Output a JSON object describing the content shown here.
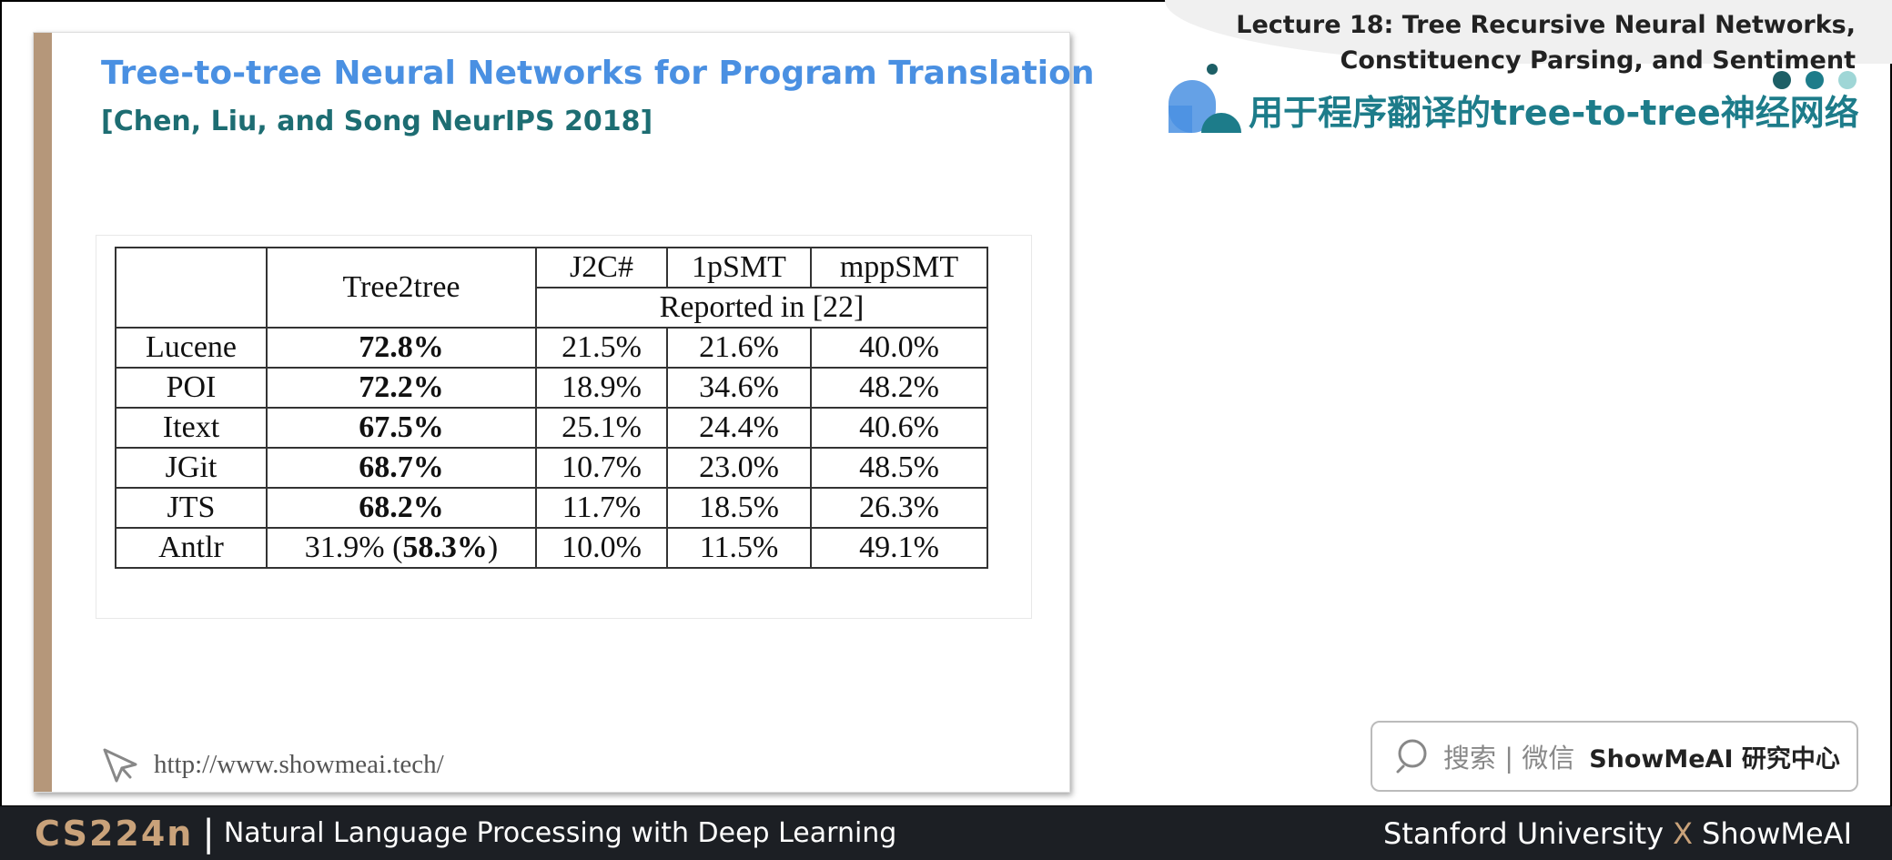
{
  "header": {
    "lecture_line1": "Lecture 18: Tree Recursive Neural Networks,",
    "lecture_line2": "Constituency Parsing, and Sentiment",
    "cn_title": "用于程序翻译的tree-to-tree神经网络"
  },
  "slide": {
    "title": "Tree-to-tree Neural Networks for Program Translation",
    "subtitle": "[Chen, Liu, and Song NeurIPS 2018]",
    "url": "http://www.showmeai.tech/"
  },
  "table": {
    "header_tree2tree": "Tree2tree",
    "header_cols": [
      "J2C#",
      "1pSMT",
      "mppSMT"
    ],
    "reported": "Reported in [22]",
    "rows": [
      {
        "name": "Lucene",
        "tree2tree": "72.8%",
        "j2c": "21.5%",
        "psmt": "21.6%",
        "mpp": "40.0%"
      },
      {
        "name": "POI",
        "tree2tree": "72.2%",
        "j2c": "18.9%",
        "psmt": "34.6%",
        "mpp": "48.2%"
      },
      {
        "name": "Itext",
        "tree2tree": "67.5%",
        "j2c": "25.1%",
        "psmt": "24.4%",
        "mpp": "40.6%"
      },
      {
        "name": "JGit",
        "tree2tree": "68.7%",
        "j2c": "10.7%",
        "psmt": "23.0%",
        "mpp": "48.5%"
      },
      {
        "name": "JTS",
        "tree2tree": "68.2%",
        "j2c": "11.7%",
        "psmt": "18.5%",
        "mpp": "26.3%"
      }
    ],
    "antlr": {
      "name": "Antlr",
      "tree2tree_plain": "31.9% (",
      "tree2tree_bold": "58.3%",
      "tree2tree_close": ")",
      "j2c": "10.0%",
      "psmt": "11.5%",
      "mpp": "49.1%"
    }
  },
  "search": {
    "label": "搜索 | 微信",
    "brand": "ShowMeAI 研究中心"
  },
  "footer": {
    "course_code": "CS224n",
    "separator": "|",
    "course_name": "Natural Language Processing with Deep Learning",
    "right_left": "Stanford University",
    "right_x": "X",
    "right_right": "ShowMeAI"
  },
  "colors": {
    "accent_blue": "#4a90e2",
    "teal": "#1d7c8a",
    "bar_brown": "#b5977a",
    "footer_bg": "#1c1f24"
  },
  "icons": [
    "cursor-arrow-icon",
    "search-icon",
    "decor-circles-icon"
  ]
}
